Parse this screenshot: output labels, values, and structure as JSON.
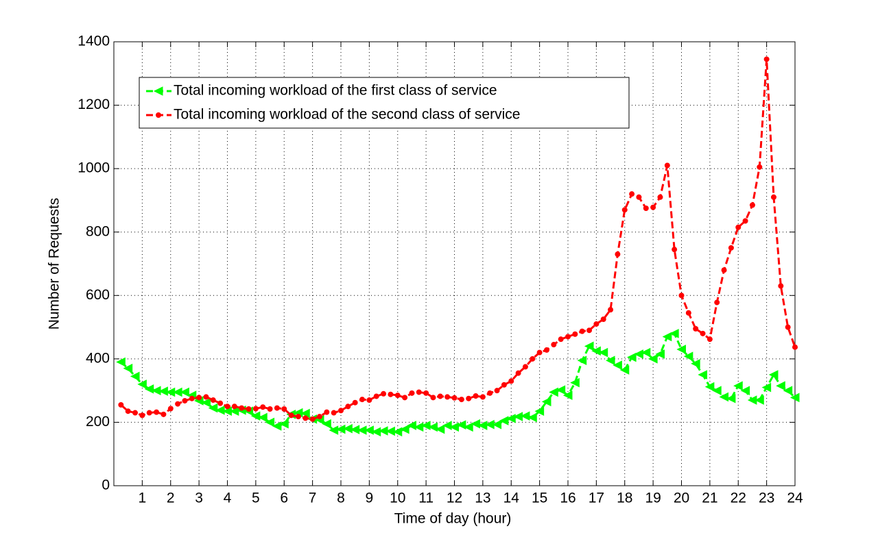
{
  "chart_data": {
    "type": "line",
    "x_label": "Time of day (hour)",
    "y_label": "Number of Requests",
    "x": [
      0.25,
      0.5,
      0.75,
      1,
      1.25,
      1.5,
      1.75,
      2,
      2.25,
      2.5,
      2.75,
      3,
      3.25,
      3.5,
      3.75,
      4,
      4.25,
      4.5,
      4.75,
      5,
      5.25,
      5.5,
      5.75,
      6,
      6.25,
      6.5,
      6.75,
      7,
      7.25,
      7.5,
      7.75,
      8,
      8.25,
      8.5,
      8.75,
      9,
      9.25,
      9.5,
      9.75,
      10,
      10.25,
      10.5,
      10.75,
      11,
      11.25,
      11.5,
      11.75,
      12,
      12.25,
      12.5,
      12.75,
      13,
      13.25,
      13.5,
      13.75,
      14,
      14.25,
      14.5,
      14.75,
      15,
      15.25,
      15.5,
      15.75,
      16,
      16.25,
      16.5,
      16.75,
      17,
      17.25,
      17.5,
      17.75,
      18,
      18.25,
      18.5,
      18.75,
      19,
      19.25,
      19.5,
      19.75,
      20,
      20.25,
      20.5,
      20.75,
      21,
      21.25,
      21.5,
      21.75,
      22,
      22.25,
      22.5,
      22.75,
      23,
      23.25,
      23.5,
      23.75,
      24
    ],
    "series": [
      {
        "name": "Total incoming workload of the first class of service",
        "color": "#00ff00",
        "marker": "triangle-left",
        "values": [
          390,
          370,
          345,
          320,
          305,
          300,
          298,
          295,
          295,
          295,
          285,
          268,
          262,
          245,
          238,
          235,
          235,
          238,
          235,
          220,
          215,
          200,
          188,
          195,
          225,
          230,
          228,
          210,
          208,
          195,
          175,
          178,
          180,
          177,
          175,
          175,
          170,
          173,
          172,
          170,
          178,
          190,
          185,
          190,
          185,
          178,
          190,
          185,
          192,
          185,
          195,
          190,
          193,
          193,
          205,
          212,
          218,
          220,
          215,
          235,
          265,
          295,
          302,
          285,
          325,
          395,
          440,
          425,
          420,
          395,
          380,
          365,
          405,
          415,
          420,
          400,
          415,
          470,
          480,
          430,
          408,
          385,
          350,
          312,
          300,
          280,
          275,
          315,
          300,
          270,
          270,
          310,
          350,
          315,
          300,
          278
        ]
      },
      {
        "name": "Total incoming workload of the second class of service",
        "color": "#ff0000",
        "marker": "circle",
        "values": [
          255,
          235,
          230,
          222,
          230,
          232,
          225,
          243,
          258,
          268,
          275,
          278,
          280,
          270,
          260,
          250,
          250,
          245,
          242,
          243,
          248,
          242,
          245,
          242,
          222,
          218,
          213,
          210,
          218,
          232,
          230,
          237,
          250,
          262,
          272,
          270,
          282,
          290,
          288,
          285,
          278,
          292,
          295,
          292,
          278,
          282,
          280,
          277,
          272,
          275,
          283,
          280,
          292,
          300,
          318,
          330,
          355,
          375,
          400,
          420,
          428,
          445,
          462,
          470,
          478,
          487,
          490,
          510,
          525,
          555,
          730,
          870,
          920,
          910,
          875,
          878,
          910,
          1010,
          745,
          600,
          545,
          495,
          480,
          462,
          578,
          680,
          750,
          815,
          835,
          885,
          1005,
          1345,
          910,
          630,
          500,
          437
        ]
      }
    ],
    "xlim": [
      0,
      24
    ],
    "xticks": [
      1,
      2,
      3,
      4,
      5,
      6,
      7,
      8,
      9,
      10,
      11,
      12,
      13,
      14,
      15,
      16,
      17,
      18,
      19,
      20,
      21,
      22,
      23,
      24
    ],
    "ylim": [
      0,
      1400
    ],
    "yticks": [
      0,
      200,
      400,
      600,
      800,
      1000,
      1200,
      1400
    ],
    "grid": true,
    "line_style": "dashed",
    "legend_position": "upper left"
  }
}
